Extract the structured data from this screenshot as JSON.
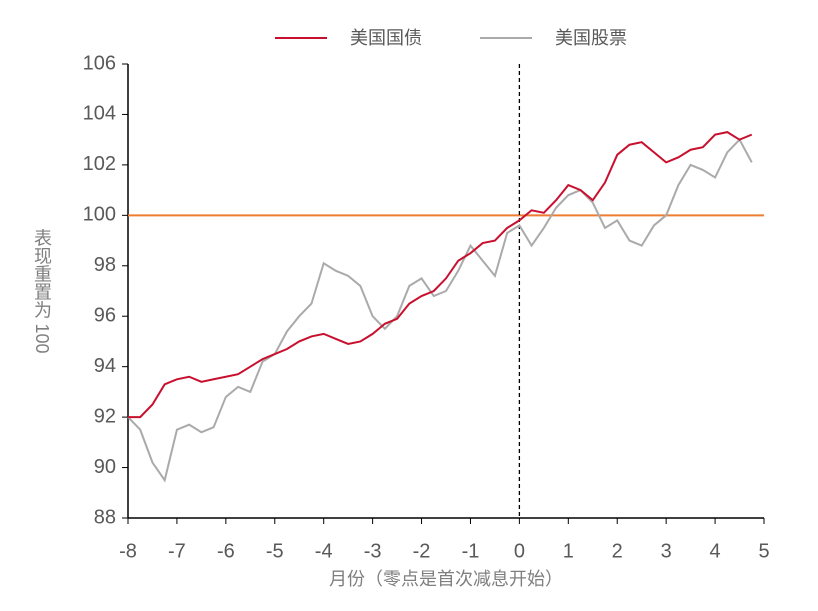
{
  "chart_data": {
    "type": "line",
    "x": [
      -8,
      -7.75,
      -7.5,
      -7.25,
      -7,
      -6.75,
      -6.5,
      -6.25,
      -6,
      -5.75,
      -5.5,
      -5.25,
      -5,
      -4.75,
      -4.5,
      -4.25,
      -4,
      -3.75,
      -3.5,
      -3.25,
      -3,
      -2.75,
      -2.5,
      -2.25,
      -2,
      -1.75,
      -1.5,
      -1.25,
      -1,
      -0.75,
      -0.5,
      -0.25,
      0,
      0.25,
      0.5,
      0.75,
      1,
      1.25,
      1.5,
      1.75,
      2,
      2.25,
      2.5,
      2.75,
      3,
      3.25,
      3.5,
      3.75,
      4,
      4.25,
      4.5,
      4.75
    ],
    "series": [
      {
        "name": "美国国债",
        "color": "#c8102e",
        "values": [
          92.0,
          92.0,
          92.5,
          93.3,
          93.5,
          93.6,
          93.4,
          93.5,
          93.6,
          93.7,
          94.0,
          94.3,
          94.5,
          94.7,
          95.0,
          95.2,
          95.3,
          95.1,
          94.9,
          95.0,
          95.3,
          95.7,
          95.9,
          96.5,
          96.8,
          97.0,
          97.5,
          98.2,
          98.5,
          98.9,
          99.0,
          99.5,
          99.8,
          100.2,
          100.1,
          100.6,
          101.2,
          101.0,
          100.6,
          101.3,
          102.4,
          102.8,
          102.9,
          102.5,
          102.1,
          102.3,
          102.6,
          102.7,
          103.2,
          103.3,
          103.0,
          103.2
        ]
      },
      {
        "name": "美国股票",
        "color": "#aaaaaa",
        "values": [
          92.0,
          91.5,
          90.2,
          89.5,
          91.5,
          91.7,
          91.4,
          91.6,
          92.8,
          93.2,
          93.0,
          94.2,
          94.5,
          95.4,
          96.0,
          96.5,
          98.1,
          97.8,
          97.6,
          97.2,
          96.0,
          95.5,
          96.0,
          97.2,
          97.5,
          96.8,
          97.0,
          97.8,
          98.8,
          98.2,
          97.6,
          99.3,
          99.6,
          98.8,
          99.5,
          100.3,
          100.8,
          101.0,
          100.5,
          99.5,
          99.8,
          99.0,
          98.8,
          99.6,
          100.0,
          101.2,
          102.0,
          101.8,
          101.5,
          102.5,
          103.0,
          102.1
        ]
      }
    ],
    "hline": 100,
    "hline_color": "#ed7d31",
    "vline": 0,
    "xlim": [
      -8,
      5
    ],
    "xticks": [
      -8,
      -7,
      -6,
      -5,
      -4,
      -3,
      -2,
      -1,
      0,
      1,
      2,
      3,
      4,
      5
    ],
    "ylim": [
      88,
      106
    ],
    "yticks": [
      88,
      90,
      92,
      94,
      96,
      98,
      100,
      102,
      104,
      106
    ],
    "ylabel": "表现重置为 100",
    "xlabel": "月份（零点是首次减息开始）"
  }
}
